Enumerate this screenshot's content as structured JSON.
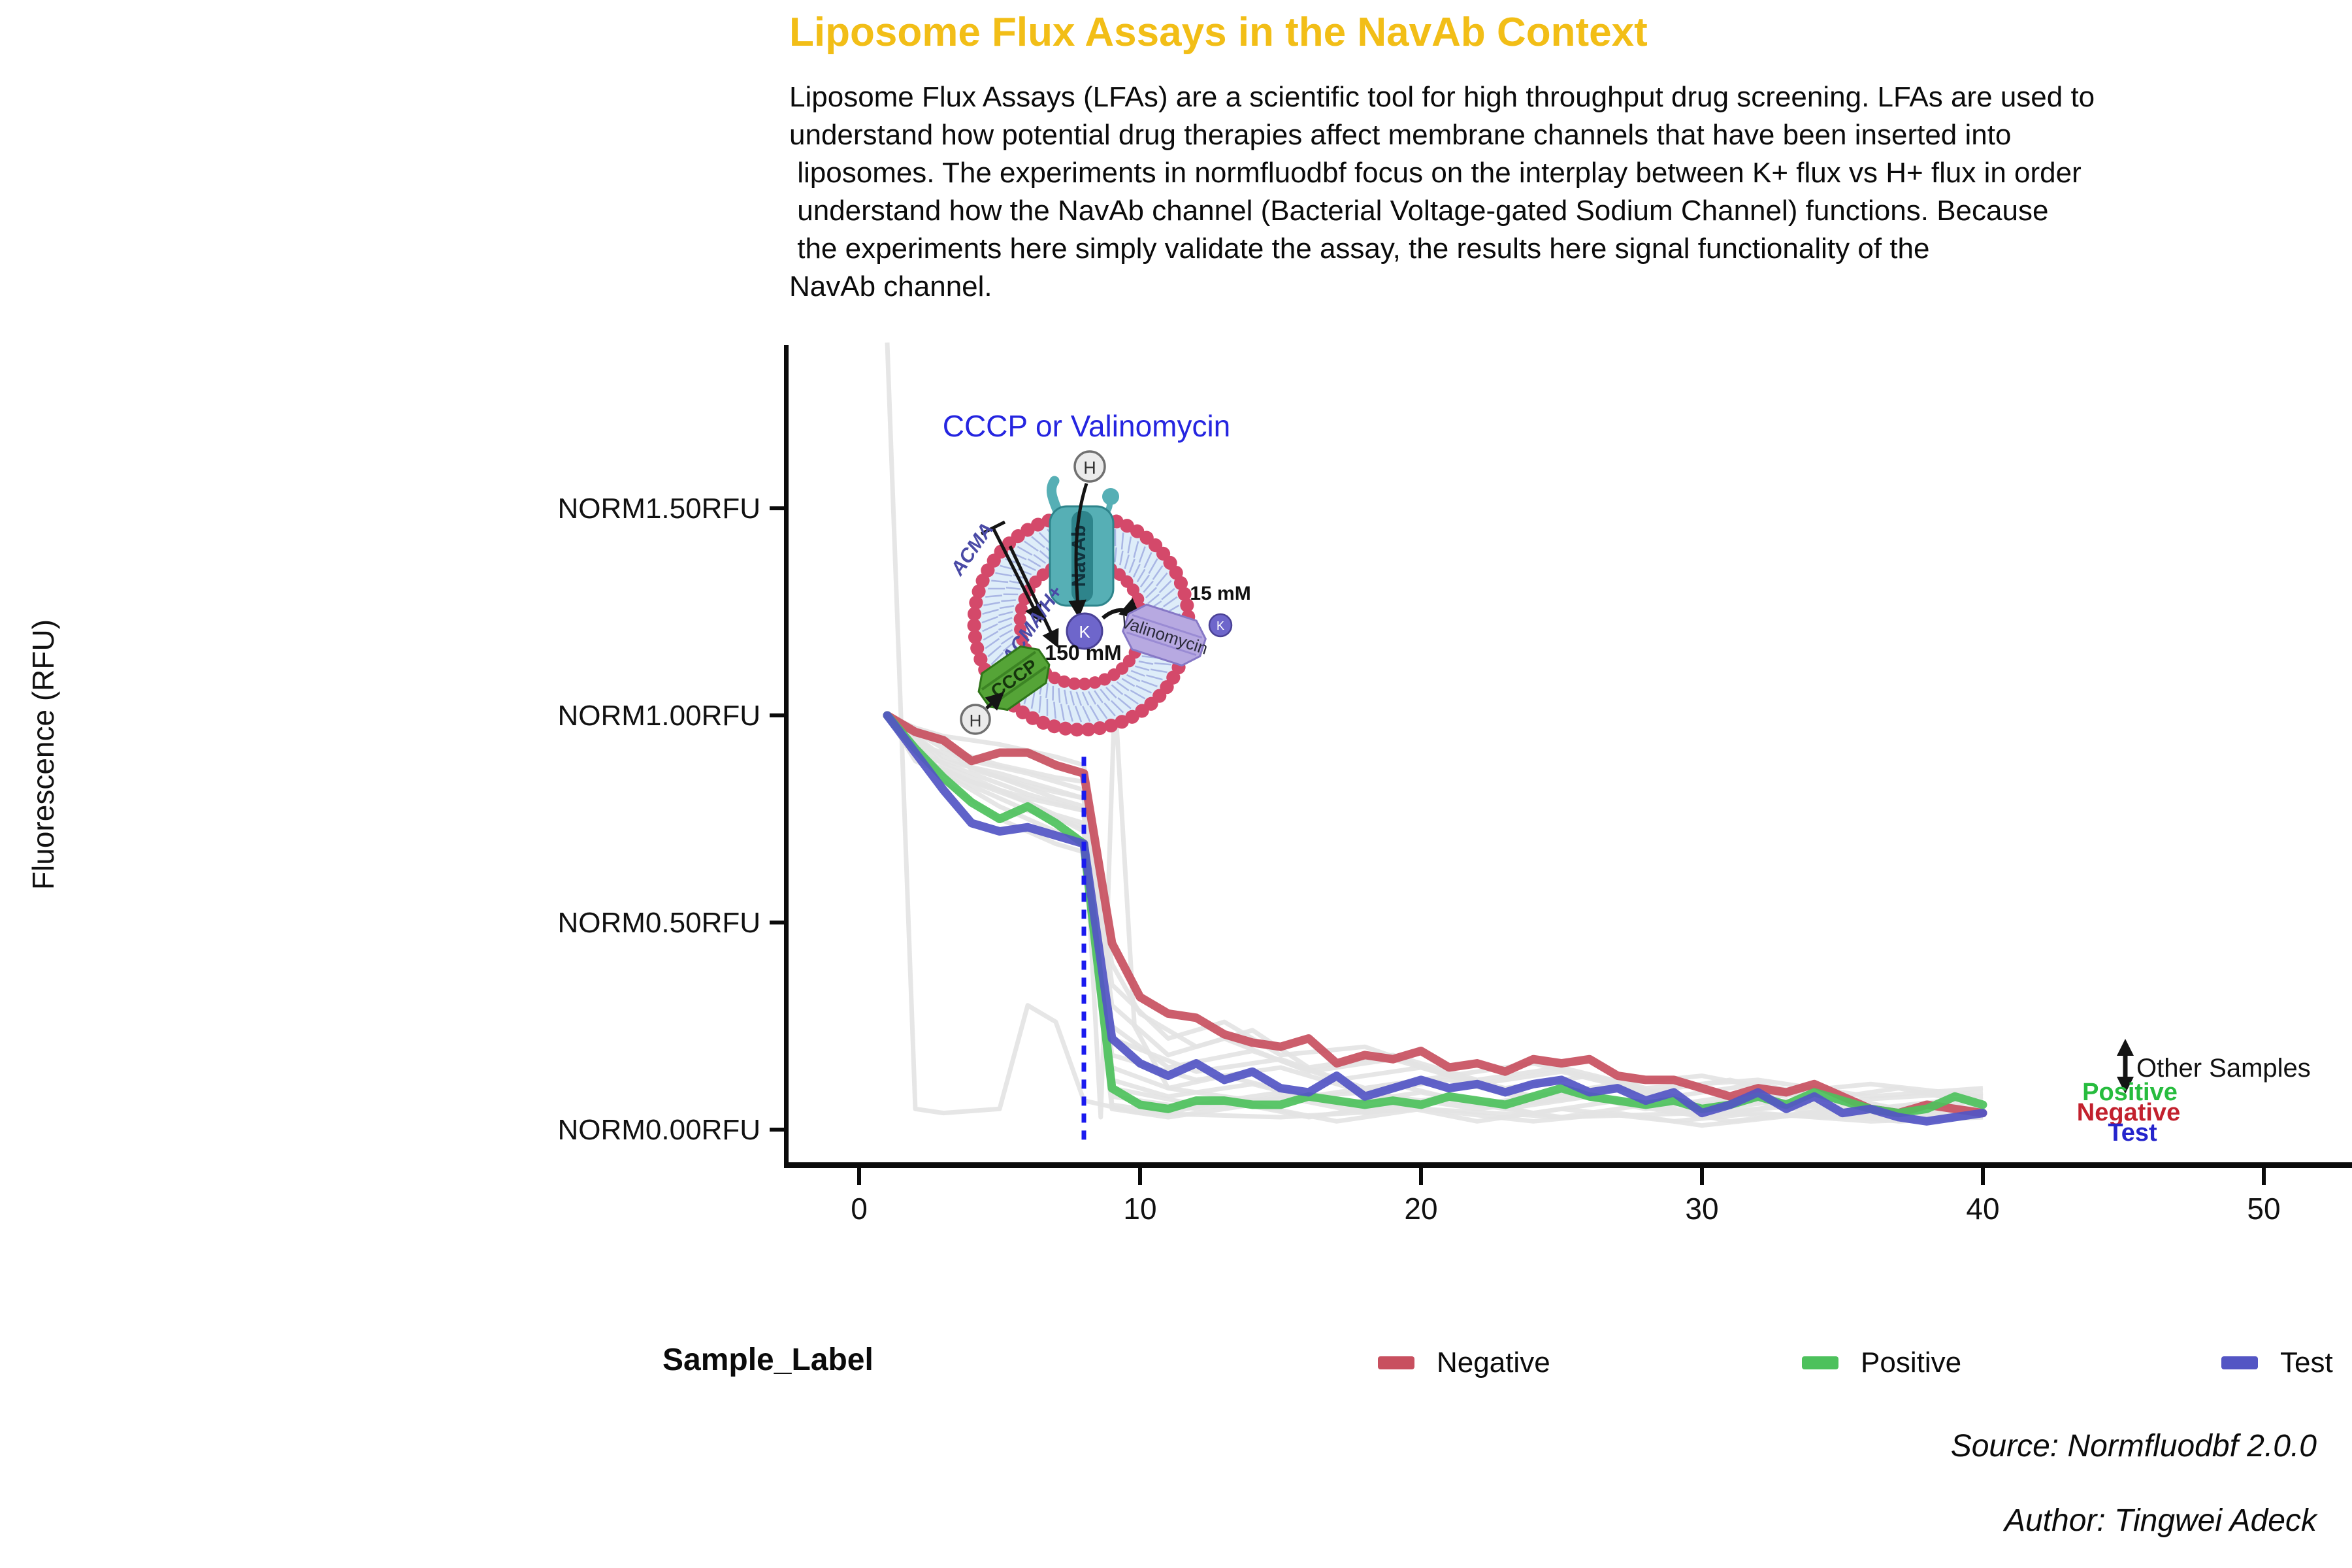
{
  "header": {
    "title": "Liposome Flux Assays in the NavAb Context",
    "title_color": "#F2BE17",
    "description_lines": [
      "Liposome Flux Assays (LFAs) are a scientific tool for high throughput drug screening. LFAs are used to",
      "understand how potential drug therapies affect membrane channels that have been inserted into",
      " liposomes. The experiments in normfluodbf focus on the interplay between K+ flux vs H+ flux in order",
      " understand how the NavAb channel (Bacterial Voltage-gated Sodium Channel) functions. Because",
      " the experiments here simply validate the assay, the results here signal functionality of the",
      "NavAb channel."
    ]
  },
  "chart_data": {
    "type": "line",
    "title": "Liposome Flux Assays in the NavAb Context",
    "xlabel": "",
    "ylabel": "Fluorescence (RFU)",
    "xlim": [
      0,
      53
    ],
    "ylim": [
      -0.05,
      1.9
    ],
    "grid": false,
    "x_ticks": [
      0,
      10,
      20,
      30,
      40,
      50
    ],
    "y_ticks": [
      {
        "label": "NORM1.50RFU",
        "value": 1.5
      },
      {
        "label": "NORM1.00RFU",
        "value": 1.0
      },
      {
        "label": "NORM0.50RFU",
        "value": 0.5
      },
      {
        "label": "NORM0.00RFU",
        "value": 0.0
      }
    ],
    "x_start": 1,
    "x_step": 1,
    "series": [
      {
        "name": "Negative",
        "color": "#C8505F",
        "values": [
          1.0,
          0.96,
          0.94,
          0.89,
          0.91,
          0.91,
          0.88,
          0.86,
          0.45,
          0.32,
          0.28,
          0.27,
          0.23,
          0.21,
          0.2,
          0.22,
          0.16,
          0.18,
          0.17,
          0.19,
          0.15,
          0.16,
          0.14,
          0.17,
          0.16,
          0.17,
          0.13,
          0.12,
          0.12,
          0.1,
          0.08,
          0.1,
          0.09,
          0.11,
          0.08,
          0.05,
          0.04,
          0.06,
          0.05,
          0.04
        ]
      },
      {
        "name": "Positive",
        "color": "#4DC15C",
        "values": [
          1.0,
          0.92,
          0.85,
          0.79,
          0.75,
          0.78,
          0.74,
          0.69,
          0.1,
          0.06,
          0.05,
          0.07,
          0.07,
          0.06,
          0.06,
          0.08,
          0.07,
          0.06,
          0.07,
          0.06,
          0.08,
          0.07,
          0.06,
          0.08,
          0.1,
          0.08,
          0.07,
          0.06,
          0.07,
          0.05,
          0.06,
          0.08,
          0.06,
          0.09,
          0.07,
          0.05,
          0.04,
          0.05,
          0.08,
          0.06
        ]
      },
      {
        "name": "Test",
        "color": "#5355C4",
        "values": [
          1.0,
          0.91,
          0.82,
          0.74,
          0.72,
          0.73,
          0.71,
          0.69,
          0.22,
          0.16,
          0.13,
          0.16,
          0.12,
          0.14,
          0.1,
          0.09,
          0.13,
          0.08,
          0.1,
          0.12,
          0.1,
          0.11,
          0.09,
          0.11,
          0.12,
          0.09,
          0.1,
          0.07,
          0.09,
          0.04,
          0.06,
          0.09,
          0.05,
          0.08,
          0.04,
          0.05,
          0.03,
          0.02,
          0.03,
          0.04
        ]
      }
    ],
    "other_samples": {
      "name": "Other Samples",
      "color": "#E3E3E3",
      "lines": [
        [
          [
            1,
            1.9
          ],
          [
            2,
            0.05
          ],
          [
            3,
            0.04
          ],
          [
            5,
            0.05
          ],
          [
            6,
            0.3
          ],
          [
            7,
            0.26
          ],
          [
            8,
            0.07
          ],
          [
            10,
            0.04
          ],
          [
            15,
            0.03
          ],
          [
            20,
            0.05
          ],
          [
            25,
            0.03
          ],
          [
            30,
            0.04
          ],
          [
            35,
            0.03
          ],
          [
            40,
            0.04
          ]
        ],
        [
          [
            1,
            1.0
          ],
          [
            2,
            0.9
          ],
          [
            4,
            0.84
          ],
          [
            6,
            0.8
          ],
          [
            8,
            0.77
          ],
          [
            8.6,
            0.03
          ],
          [
            9.1,
            1.05
          ],
          [
            9.8,
            0.25
          ],
          [
            11,
            0.1
          ],
          [
            14,
            0.07
          ],
          [
            18,
            0.09
          ],
          [
            22,
            0.05
          ],
          [
            26,
            0.08
          ],
          [
            30,
            0.04
          ],
          [
            34,
            0.06
          ],
          [
            38,
            0.03
          ],
          [
            40,
            0.05
          ]
        ],
        [
          [
            1,
            1.0
          ],
          [
            2,
            0.97
          ],
          [
            3,
            0.95
          ],
          [
            5,
            0.93
          ],
          [
            7,
            0.9
          ],
          [
            8,
            0.88
          ],
          [
            9,
            0.35
          ],
          [
            11,
            0.22
          ],
          [
            13,
            0.26
          ],
          [
            15,
            0.18
          ],
          [
            18,
            0.2
          ],
          [
            21,
            0.13
          ],
          [
            24,
            0.16
          ],
          [
            27,
            0.11
          ],
          [
            30,
            0.13
          ],
          [
            33,
            0.09
          ],
          [
            36,
            0.11
          ],
          [
            40,
            0.08
          ]
        ],
        [
          [
            1,
            1.0
          ],
          [
            3,
            0.92
          ],
          [
            5,
            0.88
          ],
          [
            7,
            0.85
          ],
          [
            8,
            0.84
          ],
          [
            9,
            0.25
          ],
          [
            11,
            0.15
          ],
          [
            14,
            0.19
          ],
          [
            17,
            0.12
          ],
          [
            20,
            0.15
          ],
          [
            23,
            0.1
          ],
          [
            26,
            0.13
          ],
          [
            29,
            0.08
          ],
          [
            32,
            0.11
          ],
          [
            35,
            0.07
          ],
          [
            40,
            0.09
          ]
        ],
        [
          [
            1,
            1.0
          ],
          [
            3,
            0.9
          ],
          [
            5,
            0.85
          ],
          [
            7,
            0.8
          ],
          [
            8,
            0.78
          ],
          [
            9,
            0.18
          ],
          [
            12,
            0.12
          ],
          [
            15,
            0.15
          ],
          [
            18,
            0.09
          ],
          [
            21,
            0.12
          ],
          [
            24,
            0.07
          ],
          [
            27,
            0.1
          ],
          [
            30,
            0.06
          ],
          [
            34,
            0.09
          ],
          [
            37,
            0.05
          ],
          [
            40,
            0.07
          ]
        ],
        [
          [
            1,
            1.0
          ],
          [
            3,
            0.88
          ],
          [
            5,
            0.82
          ],
          [
            7,
            0.76
          ],
          [
            8,
            0.74
          ],
          [
            9,
            0.12
          ],
          [
            11,
            0.08
          ],
          [
            14,
            0.11
          ],
          [
            17,
            0.06
          ],
          [
            20,
            0.09
          ],
          [
            23,
            0.05
          ],
          [
            26,
            0.08
          ],
          [
            29,
            0.04
          ],
          [
            33,
            0.07
          ],
          [
            36,
            0.03
          ],
          [
            40,
            0.05
          ]
        ],
        [
          [
            1,
            1.0
          ],
          [
            3,
            0.86
          ],
          [
            5,
            0.78
          ],
          [
            7,
            0.72
          ],
          [
            8,
            0.7
          ],
          [
            9,
            0.08
          ],
          [
            12,
            0.05
          ],
          [
            15,
            0.08
          ],
          [
            18,
            0.04
          ],
          [
            21,
            0.07
          ],
          [
            25,
            0.03
          ],
          [
            28,
            0.06
          ],
          [
            31,
            0.02
          ],
          [
            35,
            0.05
          ],
          [
            38,
            0.02
          ],
          [
            40,
            0.04
          ]
        ],
        [
          [
            1,
            1.0
          ],
          [
            3,
            0.84
          ],
          [
            5,
            0.75
          ],
          [
            7,
            0.69
          ],
          [
            8,
            0.67
          ],
          [
            9,
            0.05
          ],
          [
            11,
            0.03
          ],
          [
            14,
            0.06
          ],
          [
            17,
            0.02
          ],
          [
            20,
            0.05
          ],
          [
            24,
            0.02
          ],
          [
            27,
            0.04
          ],
          [
            30,
            0.01
          ],
          [
            34,
            0.04
          ],
          [
            37,
            0.02
          ],
          [
            40,
            0.03
          ]
        ],
        [
          [
            1,
            1.0
          ],
          [
            2,
            0.9
          ],
          [
            4,
            0.84
          ],
          [
            6,
            0.79
          ],
          [
            8,
            0.72
          ],
          [
            9,
            0.15
          ],
          [
            11,
            0.1
          ],
          [
            13,
            0.13
          ],
          [
            16,
            0.08
          ],
          [
            19,
            0.11
          ],
          [
            22,
            0.06
          ],
          [
            25,
            0.09
          ],
          [
            28,
            0.05
          ],
          [
            31,
            0.08
          ],
          [
            34,
            0.04
          ],
          [
            38,
            0.06
          ],
          [
            40,
            0.05
          ]
        ],
        [
          [
            1,
            1.0
          ],
          [
            2,
            0.93
          ],
          [
            4,
            0.89
          ],
          [
            6,
            0.86
          ],
          [
            8,
            0.82
          ],
          [
            9,
            0.3
          ],
          [
            11,
            0.18
          ],
          [
            13,
            0.22
          ],
          [
            16,
            0.14
          ],
          [
            19,
            0.17
          ],
          [
            22,
            0.11
          ],
          [
            25,
            0.14
          ],
          [
            28,
            0.09
          ],
          [
            31,
            0.12
          ],
          [
            34,
            0.07
          ],
          [
            37,
            0.1
          ],
          [
            40,
            0.06
          ]
        ],
        [
          [
            1,
            1.0
          ],
          [
            2,
            0.91
          ],
          [
            4,
            0.86
          ],
          [
            6,
            0.81
          ],
          [
            8,
            0.77
          ],
          [
            9,
            0.22
          ],
          [
            12,
            0.14
          ],
          [
            15,
            0.17
          ],
          [
            18,
            0.1
          ],
          [
            21,
            0.13
          ],
          [
            24,
            0.08
          ],
          [
            27,
            0.11
          ],
          [
            30,
            0.06
          ],
          [
            33,
            0.09
          ],
          [
            36,
            0.05
          ],
          [
            40,
            0.08
          ]
        ],
        [
          [
            1,
            1.0
          ],
          [
            2,
            0.89
          ],
          [
            4,
            0.83
          ],
          [
            6,
            0.77
          ],
          [
            8,
            0.73
          ],
          [
            9,
            0.1
          ],
          [
            12,
            0.06
          ],
          [
            15,
            0.09
          ],
          [
            18,
            0.05
          ],
          [
            21,
            0.08
          ],
          [
            24,
            0.04
          ],
          [
            27,
            0.07
          ],
          [
            30,
            0.03
          ],
          [
            33,
            0.06
          ],
          [
            37,
            0.03
          ],
          [
            40,
            0.05
          ]
        ],
        [
          [
            1,
            1.0
          ],
          [
            3,
            0.93
          ],
          [
            4,
            0.87
          ],
          [
            6,
            0.83
          ],
          [
            8,
            0.8
          ],
          [
            9,
            0.4
          ],
          [
            10,
            0.28
          ],
          [
            12,
            0.2
          ],
          [
            14,
            0.24
          ],
          [
            16,
            0.15
          ],
          [
            19,
            0.18
          ],
          [
            22,
            0.12
          ],
          [
            25,
            0.15
          ],
          [
            28,
            0.1
          ],
          [
            32,
            0.12
          ],
          [
            36,
            0.08
          ],
          [
            40,
            0.1
          ]
        ],
        [
          [
            1,
            1.0
          ],
          [
            2,
            0.95
          ],
          [
            3,
            0.89
          ],
          [
            5,
            0.86
          ],
          [
            7,
            0.82
          ],
          [
            8,
            0.8
          ],
          [
            9,
            0.06
          ],
          [
            11,
            0.04
          ],
          [
            13,
            0.07
          ],
          [
            16,
            0.03
          ],
          [
            19,
            0.06
          ],
          [
            22,
            0.02
          ],
          [
            25,
            0.05
          ],
          [
            29,
            0.02
          ],
          [
            32,
            0.04
          ],
          [
            36,
            0.02
          ],
          [
            40,
            0.03
          ]
        ]
      ]
    },
    "vline": {
      "x": 8,
      "color": "#1A1AEF",
      "style": "dotted"
    },
    "legend_position": "bottom"
  },
  "annotations": {
    "other_samples": "Other Samples",
    "positive": "Positive",
    "negative": "Negative",
    "test": "Test",
    "colors": {
      "other_samples": "#111111",
      "positive": "#27BC3E",
      "negative": "#C2212E",
      "test": "#2525CC"
    }
  },
  "diagram": {
    "heading": "CCCP or Valinomycin",
    "heading_color": "#2525E0",
    "labels": {
      "navab": "NavAb",
      "acma": "ACMA",
      "acma_h": "ACMA/H+",
      "valinomycin": "Valinomycin",
      "cccp": "CCCP",
      "h_top": "H",
      "h_bottom": "H",
      "k_inside": "K",
      "k_outside": "K",
      "conc_inside": "150 mM",
      "conc_outside": "15 mM"
    }
  },
  "legend": {
    "title": "Sample_Label",
    "items": [
      {
        "label": "Negative",
        "color": "#C8505F"
      },
      {
        "label": "Positive",
        "color": "#4DC15C"
      },
      {
        "label": "Test",
        "color": "#5355C4"
      }
    ]
  },
  "captions": {
    "source": "Source: Normfluodbf 2.0.0",
    "author": "Author: Tingwei Adeck"
  }
}
